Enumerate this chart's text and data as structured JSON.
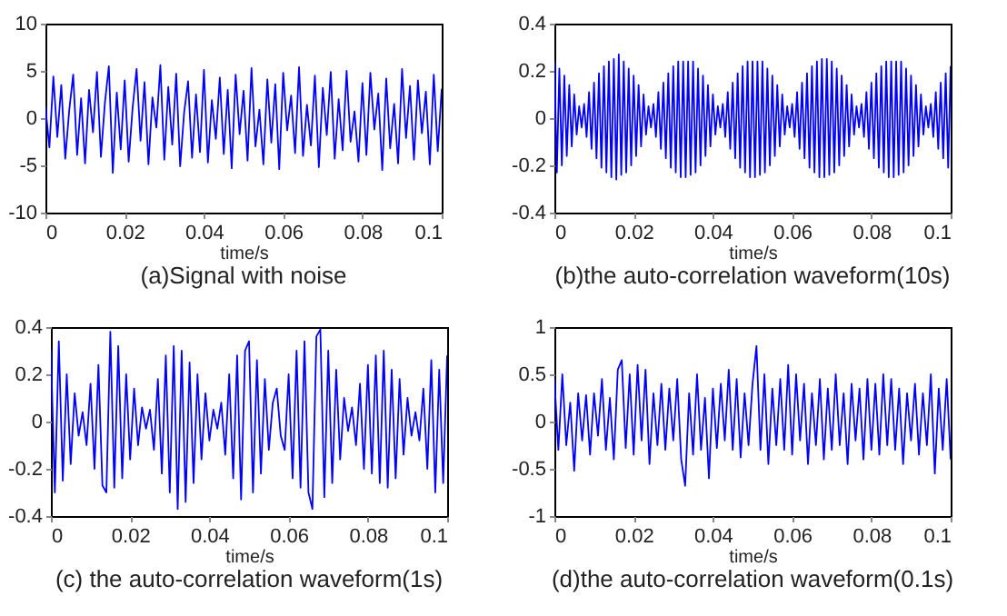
{
  "chart_data": [
    {
      "type": "line",
      "title": "(a)Signal with noise",
      "xlabel": "time/s",
      "xlim": [
        0,
        0.1
      ],
      "xticks": [
        0,
        0.02,
        0.04,
        0.06,
        0.08,
        0.1
      ],
      "ylim": [
        -10,
        10
      ],
      "yticks": [
        -10,
        -5,
        0,
        5,
        10
      ],
      "x": [
        0,
        0.001,
        0.002,
        0.003,
        0.004,
        0.005,
        0.006,
        0.007,
        0.008,
        0.009,
        0.01,
        0.011,
        0.012,
        0.013,
        0.014,
        0.015,
        0.016,
        0.017,
        0.018,
        0.019,
        0.02,
        0.021,
        0.022,
        0.023,
        0.024,
        0.025,
        0.026,
        0.027,
        0.028,
        0.029,
        0.03,
        0.031,
        0.032,
        0.033,
        0.034,
        0.035,
        0.036,
        0.037,
        0.038,
        0.039,
        0.04,
        0.041,
        0.042,
        0.043,
        0.044,
        0.045,
        0.046,
        0.047,
        0.048,
        0.049,
        0.05,
        0.051,
        0.052,
        0.053,
        0.054,
        0.055,
        0.056,
        0.057,
        0.058,
        0.059,
        0.06,
        0.061,
        0.062,
        0.063,
        0.064,
        0.065,
        0.066,
        0.067,
        0.068,
        0.069,
        0.07,
        0.071,
        0.072,
        0.073,
        0.074,
        0.075,
        0.076,
        0.077,
        0.078,
        0.079,
        0.08,
        0.081,
        0.082,
        0.083,
        0.084,
        0.085,
        0.086,
        0.087,
        0.088,
        0.089,
        0.09,
        0.091,
        0.092,
        0.093,
        0.094,
        0.095,
        0.096,
        0.097,
        0.098,
        0.099,
        0.1
      ],
      "series": [
        {
          "color": "#0000ff",
          "values": [
            1.2,
            -3.1,
            4.4,
            -2.0,
            3.5,
            -4.3,
            0.8,
            4.6,
            -3.9,
            2.1,
            -4.8,
            3.0,
            -1.5,
            4.9,
            -4.1,
            1.6,
            5.5,
            -5.8,
            2.7,
            -3.3,
            4.0,
            -4.6,
            1.1,
            5.2,
            -2.4,
            3.8,
            -4.9,
            2.2,
            -1.0,
            5.6,
            -4.4,
            3.3,
            -2.8,
            4.7,
            -5.1,
            0.6,
            3.9,
            -4.2,
            2.5,
            -3.6,
            5.1,
            -4.7,
            1.9,
            -2.2,
            4.3,
            -3.8,
            3.0,
            -5.3,
            4.6,
            -1.7,
            2.9,
            -4.5,
            5.3,
            -3.0,
            0.9,
            -4.9,
            4.1,
            -2.6,
            3.6,
            -5.4,
            4.8,
            -1.3,
            2.4,
            -3.7,
            5.4,
            -4.0,
            1.4,
            -2.9,
            4.5,
            -5.2,
            3.2,
            -1.8,
            4.9,
            -4.3,
            2.0,
            -3.4,
            5.0,
            -2.5,
            0.7,
            -4.6,
            3.7,
            -3.9,
            4.8,
            -1.2,
            2.6,
            -5.5,
            4.2,
            -3.2,
            1.5,
            -4.8,
            5.2,
            -2.1,
            3.4,
            -4.4,
            4.0,
            -1.6,
            2.8,
            -4.9,
            4.6,
            -3.5,
            3.1
          ]
        }
      ]
    },
    {
      "type": "line",
      "title": "(b)the auto-correlation waveform(10s)",
      "xlabel": "time/s",
      "xlim": [
        0,
        0.1
      ],
      "xticks": [
        0,
        0.02,
        0.04,
        0.06,
        0.08,
        0.1
      ],
      "ylim": [
        -0.4,
        0.4
      ],
      "yticks": [
        -0.4,
        -0.2,
        0,
        0.2,
        0.4
      ],
      "x": [
        0,
        0.000625,
        0.00125,
        0.001875,
        0.0025,
        0.003125,
        0.00375,
        0.004375,
        0.005,
        0.005625,
        0.00625,
        0.006875,
        0.0075,
        0.008125,
        0.00875,
        0.009375,
        0.01,
        0.010625,
        0.01125,
        0.011875,
        0.0125,
        0.013125,
        0.01375,
        0.014375,
        0.015,
        0.015625,
        0.01625,
        0.016875,
        0.0175,
        0.018125,
        0.01875,
        0.019375,
        0.02,
        0.020625,
        0.02125,
        0.021875,
        0.0225,
        0.023125,
        0.02375,
        0.024375,
        0.025,
        0.025625,
        0.02625,
        0.026875,
        0.0275,
        0.028125,
        0.02875,
        0.029375,
        0.03,
        0.030625,
        0.03125,
        0.031875,
        0.0325,
        0.033125,
        0.03375,
        0.034375,
        0.035,
        0.035625,
        0.03625,
        0.036875,
        0.0375,
        0.038125,
        0.03875,
        0.039375,
        0.04,
        0.040625,
        0.04125,
        0.041875,
        0.0425,
        0.043125,
        0.04375,
        0.044375,
        0.045,
        0.045625,
        0.04625,
        0.046875,
        0.0475,
        0.048125,
        0.04875,
        0.049375,
        0.05,
        0.050625,
        0.05125,
        0.051875,
        0.0525,
        0.053125,
        0.05375,
        0.054375,
        0.055,
        0.055625,
        0.05625,
        0.056875,
        0.0575,
        0.058125,
        0.05875,
        0.059375,
        0.06,
        0.060625,
        0.06125,
        0.061875,
        0.0625,
        0.063125,
        0.06375,
        0.064375,
        0.065,
        0.065625,
        0.06625,
        0.066875,
        0.0675,
        0.068125,
        0.06875,
        0.069375,
        0.07,
        0.070625,
        0.07125,
        0.071875,
        0.0725,
        0.073125,
        0.07375,
        0.074375,
        0.075,
        0.075625,
        0.07625,
        0.076875,
        0.0775,
        0.078125,
        0.07875,
        0.079375,
        0.08,
        0.080625,
        0.08125,
        0.081875,
        0.0825,
        0.083125,
        0.08375,
        0.084375,
        0.085,
        0.085625,
        0.08625,
        0.086875,
        0.0875,
        0.088125,
        0.08875,
        0.089375,
        0.09,
        0.090625,
        0.09125,
        0.091875,
        0.0925,
        0.093125,
        0.09375,
        0.094375,
        0.095,
        0.095625,
        0.09625,
        0.096875,
        0.0975,
        0.098125,
        0.09875,
        0.099375,
        0.1
      ],
      "series": [
        {
          "color": "#0000ff",
          "values": [
            0.24,
            -0.23,
            0.21,
            -0.2,
            0.18,
            -0.16,
            0.14,
            -0.12,
            0.1,
            -0.07,
            0.05,
            -0.04,
            0.06,
            -0.08,
            0.11,
            -0.13,
            0.15,
            -0.17,
            0.19,
            -0.21,
            0.22,
            -0.23,
            0.24,
            -0.25,
            0.25,
            -0.26,
            0.27,
            -0.24,
            0.24,
            -0.23,
            0.21,
            -0.2,
            0.18,
            -0.16,
            0.14,
            -0.12,
            0.1,
            -0.07,
            0.05,
            -0.04,
            0.06,
            -0.08,
            0.11,
            -0.13,
            0.15,
            -0.17,
            0.19,
            -0.21,
            0.22,
            -0.23,
            0.24,
            -0.25,
            0.24,
            -0.25,
            0.24,
            -0.24,
            0.24,
            -0.23,
            0.21,
            -0.2,
            0.18,
            -0.16,
            0.14,
            -0.12,
            0.1,
            -0.07,
            0.05,
            -0.04,
            0.06,
            -0.08,
            0.11,
            -0.13,
            0.15,
            -0.17,
            0.19,
            -0.21,
            0.22,
            -0.23,
            0.24,
            -0.25,
            0.24,
            -0.25,
            0.24,
            -0.24,
            0.24,
            -0.23,
            0.21,
            -0.2,
            0.18,
            -0.16,
            0.14,
            -0.12,
            0.1,
            -0.07,
            0.05,
            -0.04,
            0.06,
            -0.08,
            0.11,
            -0.13,
            0.15,
            -0.17,
            0.19,
            -0.21,
            0.22,
            -0.23,
            0.24,
            -0.25,
            0.25,
            -0.25,
            0.25,
            -0.24,
            0.24,
            -0.23,
            0.21,
            -0.2,
            0.18,
            -0.16,
            0.14,
            -0.12,
            0.1,
            -0.07,
            0.05,
            -0.04,
            0.06,
            -0.08,
            0.11,
            -0.13,
            0.15,
            -0.17,
            0.19,
            -0.21,
            0.22,
            -0.23,
            0.24,
            -0.25,
            0.24,
            -0.25,
            0.24,
            -0.24,
            0.24,
            -0.23,
            0.21,
            -0.2,
            0.18,
            -0.16,
            0.14,
            -0.12,
            0.1,
            -0.07,
            0.05,
            -0.04,
            0.06,
            -0.08,
            0.11,
            -0.13,
            0.15,
            -0.17,
            0.19,
            -0.21,
            0.22
          ]
        }
      ]
    },
    {
      "type": "line",
      "title": "(c) the auto-correlation waveform(1s)",
      "xlabel": "time/s",
      "xlim": [
        0,
        0.1
      ],
      "xticks": [
        0,
        0.02,
        0.04,
        0.06,
        0.08,
        0.1
      ],
      "ylim": [
        -0.4,
        0.4
      ],
      "yticks": [
        -0.4,
        -0.2,
        0,
        0.2,
        0.4
      ],
      "x": [
        0,
        0.001,
        0.002,
        0.003,
        0.004,
        0.005,
        0.006,
        0.007,
        0.008,
        0.009,
        0.01,
        0.011,
        0.012,
        0.013,
        0.014,
        0.015,
        0.016,
        0.017,
        0.018,
        0.019,
        0.02,
        0.021,
        0.022,
        0.023,
        0.024,
        0.025,
        0.026,
        0.027,
        0.028,
        0.029,
        0.03,
        0.031,
        0.032,
        0.033,
        0.034,
        0.035,
        0.036,
        0.037,
        0.038,
        0.039,
        0.04,
        0.041,
        0.042,
        0.043,
        0.044,
        0.045,
        0.046,
        0.047,
        0.048,
        0.049,
        0.05,
        0.051,
        0.052,
        0.053,
        0.054,
        0.055,
        0.056,
        0.057,
        0.058,
        0.059,
        0.06,
        0.061,
        0.062,
        0.063,
        0.064,
        0.065,
        0.066,
        0.067,
        0.068,
        0.069,
        0.07,
        0.071,
        0.072,
        0.073,
        0.074,
        0.075,
        0.076,
        0.077,
        0.078,
        0.079,
        0.08,
        0.081,
        0.082,
        0.083,
        0.084,
        0.085,
        0.086,
        0.087,
        0.088,
        0.089,
        0.09,
        0.091,
        0.092,
        0.093,
        0.094,
        0.095,
        0.096,
        0.097,
        0.098,
        0.099,
        0.1
      ],
      "series": [
        {
          "color": "#0000ff",
          "values": [
            0.3,
            -0.3,
            0.34,
            -0.25,
            0.2,
            -0.18,
            0.12,
            -0.06,
            0.04,
            -0.1,
            0.16,
            -0.2,
            0.24,
            -0.27,
            -0.3,
            0.38,
            -0.28,
            0.32,
            -0.24,
            0.2,
            -0.16,
            0.14,
            -0.1,
            0.06,
            -0.03,
            0.05,
            -0.12,
            0.18,
            -0.22,
            0.28,
            -0.3,
            0.32,
            -0.37,
            0.3,
            -0.34,
            0.25,
            -0.26,
            0.2,
            -0.16,
            0.12,
            -0.08,
            0.05,
            -0.03,
            0.08,
            -0.14,
            0.2,
            -0.24,
            0.28,
            -0.33,
            0.3,
            0.34,
            -0.3,
            0.26,
            -0.22,
            0.18,
            -0.12,
            0.08,
            0.14,
            -0.06,
            -0.12,
            0.2,
            -0.24,
            0.3,
            -0.28,
            0.34,
            -0.3,
            -0.37,
            0.36,
            0.39,
            -0.32,
            0.3,
            -0.26,
            0.22,
            -0.16,
            0.1,
            -0.04,
            0.06,
            -0.1,
            0.16,
            -0.2,
            0.24,
            -0.22,
            0.28,
            -0.26,
            0.3,
            -0.28,
            0.22,
            -0.24,
            0.18,
            -0.14,
            0.1,
            -0.06,
            0.04,
            -0.08,
            0.14,
            -0.2,
            0.26,
            -0.3,
            0.22,
            -0.26,
            0.28
          ]
        }
      ]
    },
    {
      "type": "line",
      "title": "(d)the auto-correlation waveform(0.1s)",
      "xlabel": "time/s",
      "xlim": [
        0,
        0.1
      ],
      "xticks": [
        0,
        0.02,
        0.04,
        0.06,
        0.08,
        0.1
      ],
      "ylim": [
        -1,
        1
      ],
      "yticks": [
        -1,
        -0.5,
        0,
        0.5,
        1
      ],
      "x": [
        0,
        0.001,
        0.002,
        0.003,
        0.004,
        0.005,
        0.006,
        0.007,
        0.008,
        0.009,
        0.01,
        0.011,
        0.012,
        0.013,
        0.014,
        0.015,
        0.016,
        0.017,
        0.018,
        0.019,
        0.02,
        0.021,
        0.022,
        0.023,
        0.024,
        0.025,
        0.026,
        0.027,
        0.028,
        0.029,
        0.03,
        0.031,
        0.032,
        0.033,
        0.034,
        0.035,
        0.036,
        0.037,
        0.038,
        0.039,
        0.04,
        0.041,
        0.042,
        0.043,
        0.044,
        0.045,
        0.046,
        0.047,
        0.048,
        0.049,
        0.05,
        0.051,
        0.052,
        0.053,
        0.054,
        0.055,
        0.056,
        0.057,
        0.058,
        0.059,
        0.06,
        0.061,
        0.062,
        0.063,
        0.064,
        0.065,
        0.066,
        0.067,
        0.068,
        0.069,
        0.07,
        0.071,
        0.072,
        0.073,
        0.074,
        0.075,
        0.076,
        0.077,
        0.078,
        0.079,
        0.08,
        0.081,
        0.082,
        0.083,
        0.084,
        0.085,
        0.086,
        0.087,
        0.088,
        0.089,
        0.09,
        0.091,
        0.092,
        0.093,
        0.094,
        0.095,
        0.096,
        0.097,
        0.098,
        0.099,
        0.1
      ],
      "series": [
        {
          "color": "#0000ff",
          "values": [
            0.45,
            -0.3,
            0.5,
            -0.25,
            0.2,
            -0.52,
            0.3,
            -0.2,
            0.28,
            -0.35,
            0.3,
            -0.15,
            0.45,
            -0.3,
            0.25,
            -0.4,
            0.55,
            0.65,
            -0.28,
            0.5,
            -0.35,
            0.6,
            -0.2,
            0.55,
            -0.45,
            0.3,
            -0.25,
            0.4,
            -0.3,
            0.35,
            -0.2,
            0.45,
            -0.4,
            -0.68,
            0.3,
            -0.35,
            0.5,
            -0.3,
            0.25,
            -0.6,
            0.35,
            -0.28,
            0.4,
            -0.2,
            0.55,
            -0.3,
            0.45,
            -0.38,
            0.3,
            -0.25,
            0.4,
            0.8,
            -0.3,
            0.5,
            -0.45,
            0.35,
            -0.25,
            0.45,
            -0.3,
            0.6,
            -0.35,
            0.5,
            -0.2,
            0.4,
            -0.45,
            0.3,
            -0.25,
            0.45,
            -0.4,
            0.35,
            -0.3,
            0.5,
            -0.25,
            0.3,
            -0.45,
            0.4,
            -0.2,
            0.35,
            -0.4,
            0.45,
            -0.3,
            0.4,
            -0.35,
            0.5,
            -0.25,
            0.45,
            -0.3,
            0.35,
            -0.45,
            0.3,
            -0.2,
            0.4,
            -0.35,
            0.3,
            -0.25,
            0.5,
            -0.55,
            0.35,
            -0.3,
            0.45,
            -0.4
          ]
        }
      ]
    }
  ]
}
